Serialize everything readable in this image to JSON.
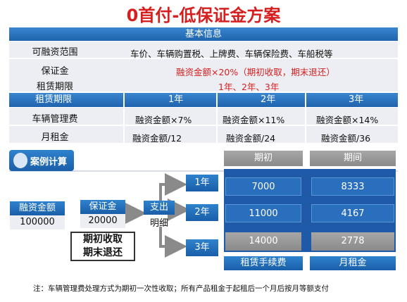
{
  "title": "0首付-低保证金方案",
  "basic": {
    "header": "基本信息",
    "financing_scope_label": "可融资范围",
    "financing_scope_value": "车价、车辆购置税、上牌费、车辆保险费、车船税等",
    "deposit_label": "保证金",
    "deposit_value": "融资金额×20%（期初收取，期末退还）",
    "lease_term_label": "租赁期限",
    "lease_term_value": "1年、2年、3年",
    "term_header_label": "租赁期限",
    "terms": [
      "1年",
      "2年",
      "3年"
    ],
    "mgmt_fee_label": "车辆管理费",
    "mgmt_fees": [
      "融资金额×7%",
      "融资金额×11%",
      "融资金额×14%"
    ],
    "monthly_label": "月租金",
    "monthly_rents": [
      "融资金额/12",
      "融资金额/24",
      "融资金额/36"
    ]
  },
  "case": {
    "badge": "案例计算",
    "financing_label": "融资金额",
    "financing_value": "100000",
    "deposit_label": "保证金",
    "deposit_value": "20000",
    "deposit_note_line1": "期初收取",
    "deposit_note_line2": "期末退还",
    "expense_label": "支出",
    "expense_sub": "明细",
    "col_initial": "期初",
    "col_period": "期间",
    "rows": [
      {
        "term": "1年",
        "initial": "7000",
        "period": "8333"
      },
      {
        "term": "2年",
        "initial": "11000",
        "period": "4167"
      },
      {
        "term": "3年",
        "initial": "14000",
        "period": "2778"
      }
    ],
    "footer_fee": "租赁手续费",
    "footer_rent": "月租金"
  },
  "note": "注：车辆管理费处理方式为期初一次性收取；所有产品租金于起租后一个月后按月等额支付",
  "colors": {
    "title_red": "#d61f1f",
    "blue": "#1f63ad",
    "gray": "#8a8a8a"
  }
}
